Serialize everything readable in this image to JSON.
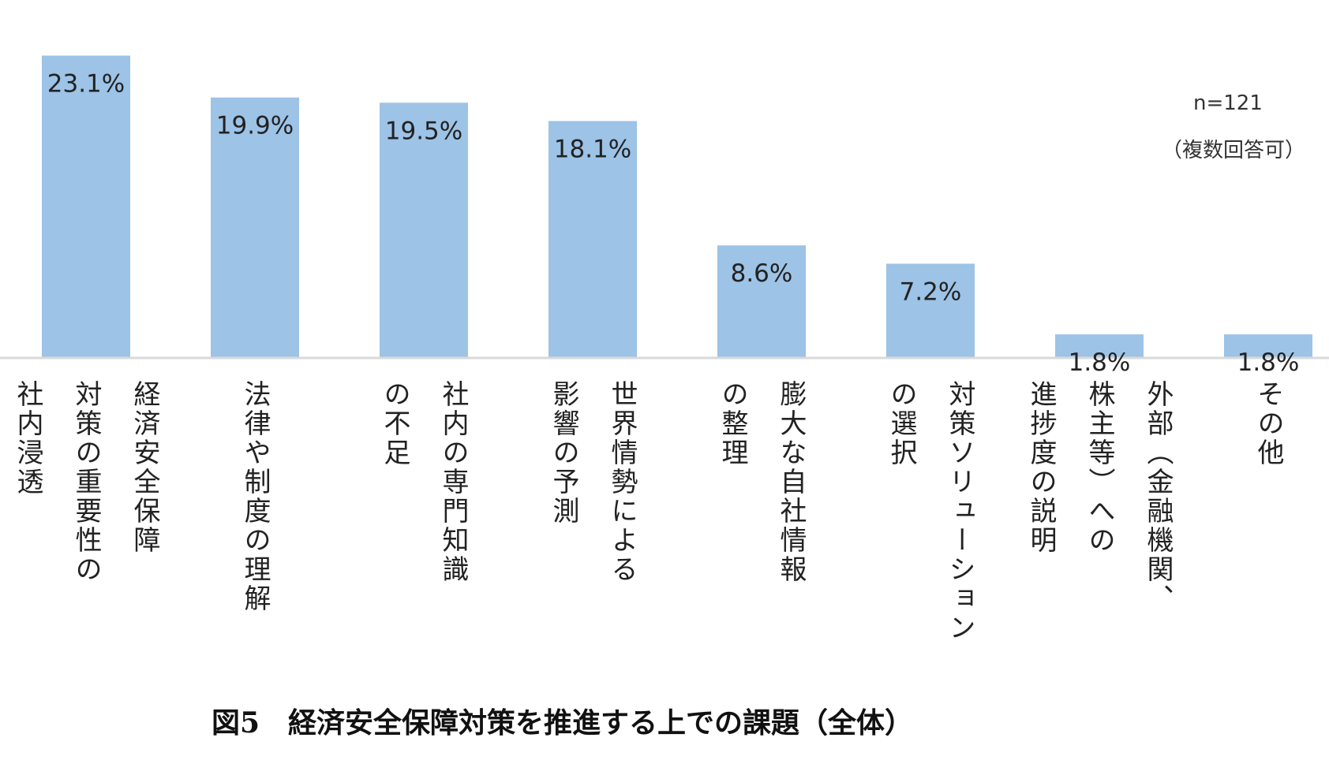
{
  "chart_data": {
    "type": "bar",
    "categories": [
      "経済安全保障\n対策の重要性の\n社内浸透",
      "法律や制度の理解",
      "社内の専門知識\nの不足",
      "世界情勢による\n影響の予測",
      "膨大な自社情報\nの整理",
      "対策ソリューション\nの選択",
      "外部（金融機関、\n株主等）への\n進捗度の説明",
      "その他"
    ],
    "values": [
      23.1,
      19.9,
      19.5,
      18.1,
      8.6,
      7.2,
      1.8,
      1.8
    ],
    "value_labels": [
      "23.1%",
      "19.9%",
      "19.5%",
      "18.1%",
      "8.6%",
      "7.2%",
      "1.8%",
      "1.8%"
    ],
    "ylim": [
      0,
      25
    ],
    "bar_color": "#9dc3e6",
    "grid": false,
    "notes": [
      "n=121",
      "（複数回答可）"
    ],
    "caption": "図5　経済安全保障対策を推進する上での課題（全体）"
  }
}
